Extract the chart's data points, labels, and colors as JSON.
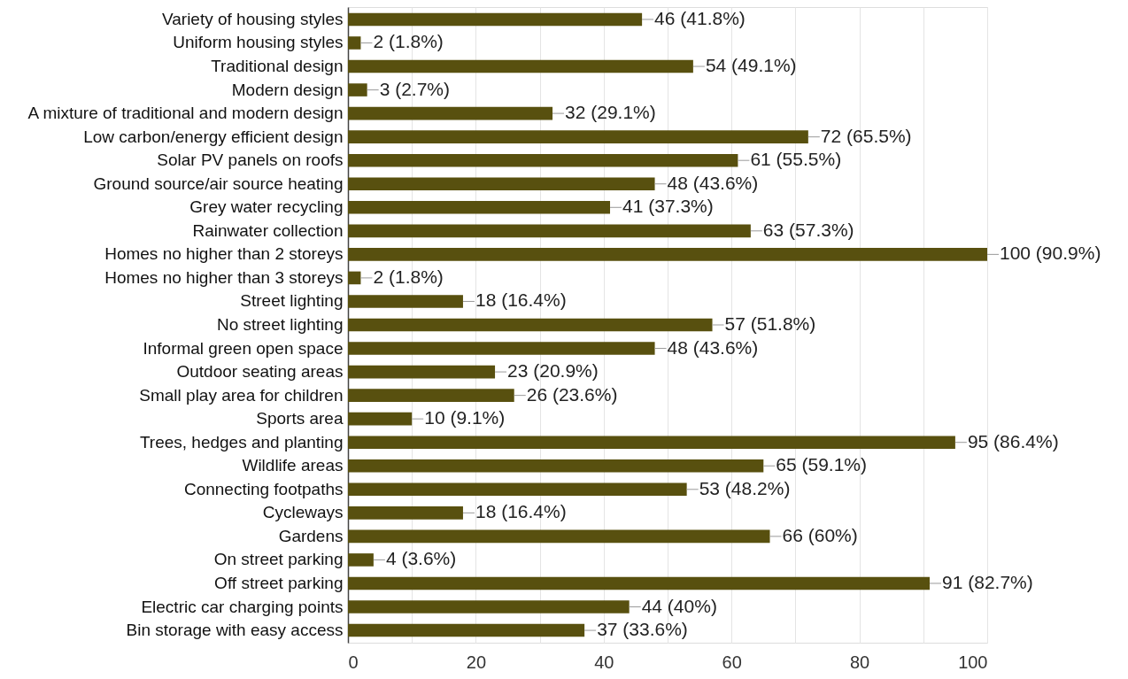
{
  "chart_data": {
    "type": "bar",
    "orientation": "horizontal",
    "categories": [
      "Variety of housing styles",
      "Uniform housing styles",
      "Traditional design",
      "Modern design",
      "A mixture of traditional and modern design",
      "Low carbon/energy efficient design",
      "Solar PV panels on roofs",
      "Ground source/air source heating",
      "Grey water recycling",
      "Rainwater collection",
      "Homes no higher than 2 storeys",
      "Homes no higher than 3 storeys",
      "Street lighting",
      "No street lighting",
      "Informal green open space",
      "Outdoor seating areas",
      "Small play area for children",
      "Sports area",
      "Trees, hedges and planting",
      "Wildlife areas",
      "Connecting footpaths",
      "Cycleways",
      "Gardens",
      "On street parking",
      "Off street parking",
      "Electric car charging points",
      "Bin storage with easy access"
    ],
    "values": [
      46,
      2,
      54,
      3,
      32,
      72,
      61,
      48,
      41,
      63,
      100,
      2,
      18,
      57,
      48,
      23,
      26,
      10,
      95,
      65,
      53,
      18,
      66,
      4,
      91,
      44,
      37
    ],
    "value_labels": [
      "46 (41.8%)",
      "2 (1.8%)",
      "54 (49.1%)",
      "3 (2.7%)",
      "32 (29.1%)",
      "72 (65.5%)",
      "61 (55.5%)",
      "48 (43.6%)",
      "41 (37.3%)",
      "63 (57.3%)",
      "100 (90.9%)",
      "2 (1.8%)",
      "18 (16.4%)",
      "57 (51.8%)",
      "48 (43.6%)",
      "23 (20.9%)",
      "26 (23.6%)",
      "10 (9.1%)",
      "95 (86.4%)",
      "65 (59.1%)",
      "53 (48.2%)",
      "18 (16.4%)",
      "66 (60%)",
      "4 (3.6%)",
      "91 (82.7%)",
      "44 (40%)",
      "37 (33.6%)"
    ],
    "color": "#58500f",
    "xlim": [
      0,
      100
    ],
    "xticks": [
      0,
      {
        "value": 10,
        "label": null
      },
      20,
      {
        "value": 30,
        "label": null
      },
      40,
      {
        "value": 50,
        "label": null
      },
      60,
      {
        "value": 70,
        "label": null
      },
      80,
      {
        "value": 90,
        "label": null
      },
      100
    ],
    "grid": "x"
  }
}
